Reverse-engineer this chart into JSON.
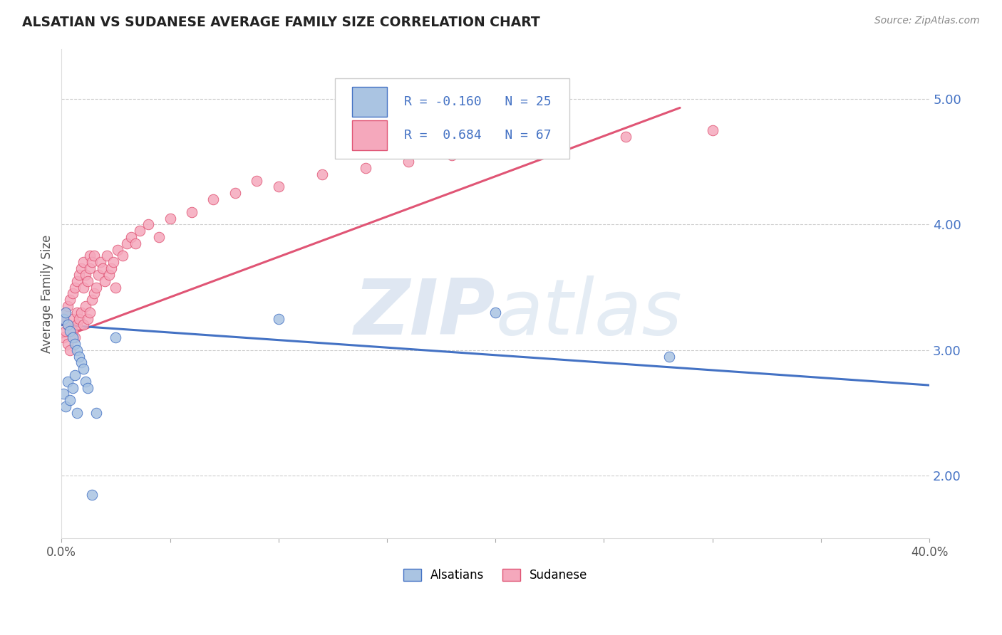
{
  "title": "ALSATIAN VS SUDANESE AVERAGE FAMILY SIZE CORRELATION CHART",
  "source": "Source: ZipAtlas.com",
  "ylabel": "Average Family Size",
  "xlim": [
    0.0,
    0.4
  ],
  "ylim": [
    1.5,
    5.4
  ],
  "yticks": [
    2.0,
    3.0,
    4.0,
    5.0
  ],
  "xticks": [
    0.0,
    0.05,
    0.1,
    0.15,
    0.2,
    0.25,
    0.3,
    0.35,
    0.4
  ],
  "xtick_labels": [
    "0.0%",
    "",
    "",
    "",
    "",
    "",
    "",
    "",
    "40.0%"
  ],
  "legend_labels": [
    "Alsatians",
    "Sudanese"
  ],
  "R_alsatian": -0.16,
  "N_alsatian": 25,
  "R_sudanese": 0.684,
  "N_sudanese": 67,
  "color_alsatian": "#aac4e2",
  "color_sudanese": "#f5a8bc",
  "line_color_alsatian": "#4472c4",
  "line_color_sudanese": "#e05575",
  "watermark_zip": "ZIP",
  "watermark_atlas": "atlas",
  "watermark_color_zip": "#c5d5e8",
  "watermark_color_atlas": "#c5d5e8",
  "background_color": "#ffffff",
  "title_color": "#222222",
  "axis_label_color": "#555555",
  "tick_color_right": "#4472c4",
  "grid_color": "#cccccc",
  "alsatian_x": [
    0.001,
    0.001,
    0.002,
    0.002,
    0.003,
    0.003,
    0.004,
    0.004,
    0.005,
    0.005,
    0.006,
    0.006,
    0.007,
    0.007,
    0.008,
    0.009,
    0.01,
    0.011,
    0.012,
    0.014,
    0.016,
    0.025,
    0.1,
    0.2,
    0.28
  ],
  "alsatian_y": [
    3.25,
    2.65,
    3.3,
    2.55,
    3.2,
    2.75,
    3.15,
    2.6,
    3.1,
    2.7,
    3.05,
    2.8,
    3.0,
    2.5,
    2.95,
    2.9,
    2.85,
    2.75,
    2.7,
    1.85,
    2.5,
    3.1,
    3.25,
    3.3,
    2.95
  ],
  "sudanese_x": [
    0.001,
    0.001,
    0.002,
    0.002,
    0.003,
    0.003,
    0.003,
    0.004,
    0.004,
    0.005,
    0.005,
    0.005,
    0.006,
    0.006,
    0.007,
    0.007,
    0.007,
    0.008,
    0.008,
    0.009,
    0.009,
    0.01,
    0.01,
    0.01,
    0.011,
    0.011,
    0.012,
    0.012,
    0.013,
    0.013,
    0.013,
    0.014,
    0.014,
    0.015,
    0.015,
    0.016,
    0.017,
    0.018,
    0.019,
    0.02,
    0.021,
    0.022,
    0.023,
    0.024,
    0.025,
    0.026,
    0.028,
    0.03,
    0.032,
    0.034,
    0.036,
    0.04,
    0.045,
    0.05,
    0.06,
    0.07,
    0.08,
    0.09,
    0.1,
    0.12,
    0.14,
    0.16,
    0.18,
    0.2,
    0.23,
    0.26,
    0.3
  ],
  "sudanese_y": [
    3.25,
    3.1,
    3.3,
    3.15,
    3.2,
    3.05,
    3.35,
    3.0,
    3.4,
    3.15,
    3.25,
    3.45,
    3.1,
    3.5,
    3.2,
    3.55,
    3.3,
    3.25,
    3.6,
    3.3,
    3.65,
    3.2,
    3.5,
    3.7,
    3.35,
    3.6,
    3.25,
    3.55,
    3.3,
    3.65,
    3.75,
    3.4,
    3.7,
    3.45,
    3.75,
    3.5,
    3.6,
    3.7,
    3.65,
    3.55,
    3.75,
    3.6,
    3.65,
    3.7,
    3.5,
    3.8,
    3.75,
    3.85,
    3.9,
    3.85,
    3.95,
    4.0,
    3.9,
    4.05,
    4.1,
    4.2,
    4.25,
    4.35,
    4.3,
    4.4,
    4.45,
    4.5,
    4.55,
    4.6,
    4.65,
    4.7,
    4.75
  ],
  "sud_line_x0": 0.0,
  "sud_line_x1": 0.285,
  "sud_line_y0": 3.1,
  "sud_line_y1": 4.93,
  "als_line_x0": 0.0,
  "als_line_x1": 0.4,
  "als_line_y0": 3.2,
  "als_line_y1": 2.72
}
